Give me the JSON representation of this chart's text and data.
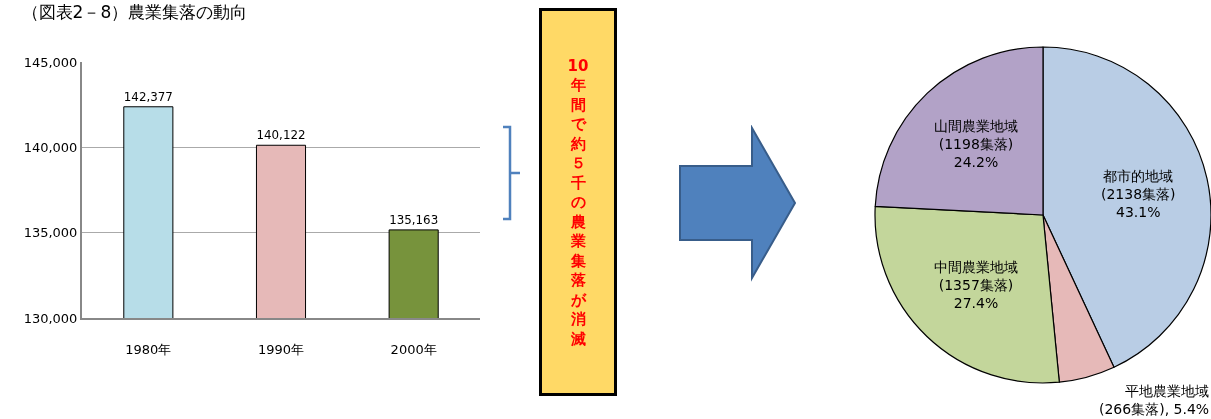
{
  "chart_data": [
    {
      "type": "bar",
      "title": "（図表2－8）農業集落の動向",
      "categories": [
        "1980年",
        "1990年",
        "2000年"
      ],
      "values": [
        142377,
        140122,
        135163
      ],
      "colors": [
        "#b7dde8",
        "#e6b9b8",
        "#77933c"
      ],
      "ylim": [
        130000,
        145000
      ],
      "yticks": [
        {
          "value": 130000,
          "label": "130,000"
        },
        {
          "value": 135000,
          "label": "135,000"
        },
        {
          "value": 140000,
          "label": "140,000"
        },
        {
          "value": 145000,
          "label": "145,000"
        }
      ],
      "grid": "y",
      "value_labels": [
        "142,377",
        "140,122",
        "135,163"
      ],
      "annotations": [
        "10年間で約５千の農業集落が消滅"
      ]
    },
    {
      "type": "pie",
      "categories": [
        "都市的地域",
        "平地農業地域",
        "中間農業地域",
        "山間農業地域"
      ],
      "values": [
        43.1,
        5.4,
        27.4,
        24.2
      ],
      "colors": [
        "#b9cde5",
        "#e6b9b8",
        "#c3d69b",
        "#b2a2c7"
      ],
      "value_labels": [
        "(2138集落)\n43.1%",
        "(266集落), 5.4%",
        "(1357集落)\n27.4%",
        "(1198集落)\n24.2%"
      ]
    }
  ]
}
